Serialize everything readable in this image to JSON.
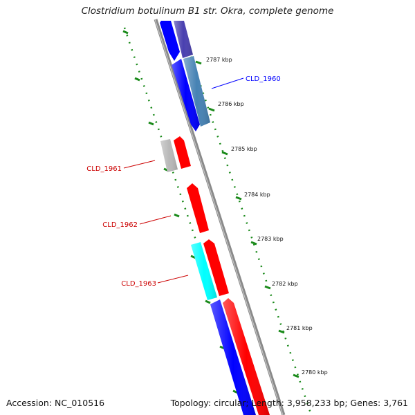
{
  "title": "Clostridium botulinum B1 str. Okra, complete genome",
  "accession": "Accession: NC_010516",
  "summary": "Topology: circular; Length: 3,958,233 bp; Genes: 3,761",
  "colors": {
    "backbone": "#8a8a8a",
    "tick": "#1a8a1a",
    "forward_cds": "#0000ff",
    "reverse_cds": "#ff0000",
    "label_blue": "#0000ff",
    "label_red": "#cc0000"
  },
  "scale_labels": [
    "2787 kbp",
    "2786 kbp",
    "2785 kbp",
    "2784 kbp",
    "2783 kbp",
    "2782 kbp",
    "2781 kbp",
    "2780 kbp"
  ],
  "features": [
    {
      "name": "CLD_1960",
      "color": "#0000ff"
    },
    {
      "name": "CLD_1961",
      "color": "#cc0000"
    },
    {
      "name": "CLD_1962",
      "color": "#cc0000"
    },
    {
      "name": "CLD_1963",
      "color": "#cc0000"
    }
  ]
}
